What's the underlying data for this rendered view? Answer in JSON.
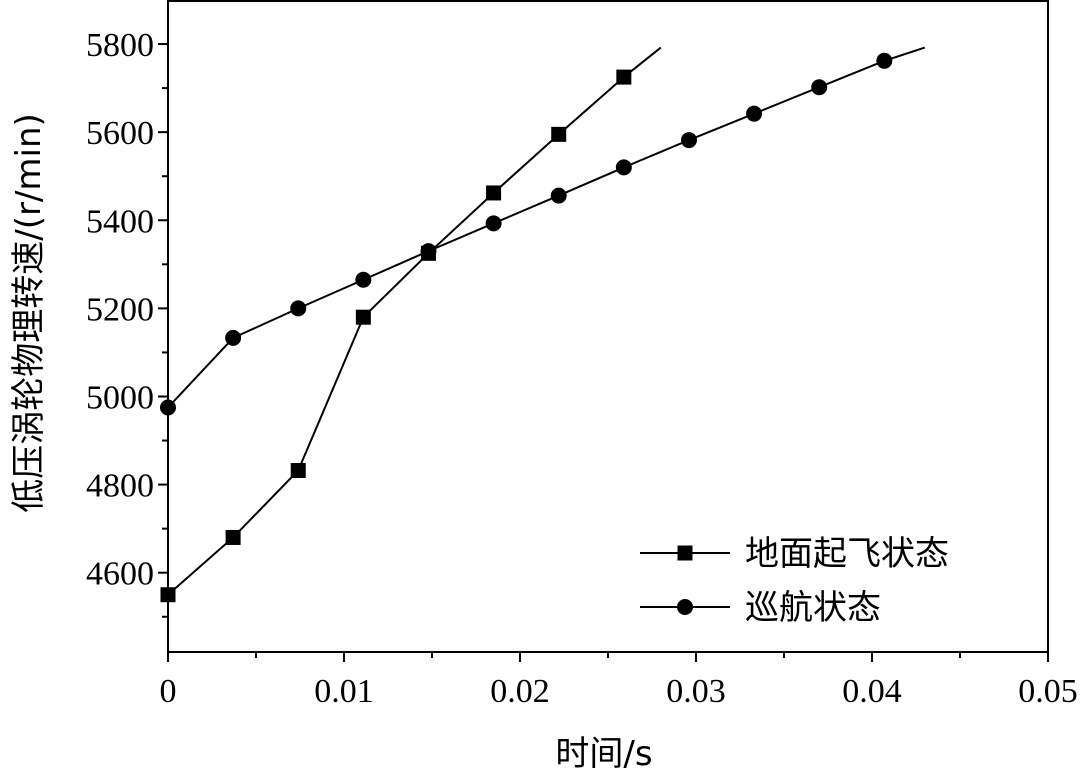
{
  "chart_data": {
    "type": "line",
    "title": "",
    "xlabel": "时间/s",
    "ylabel": "低压涡轮物理转速/(r/min)",
    "xlim": [
      0,
      0.05
    ],
    "ylim": [
      4420,
      5900
    ],
    "x_ticks": [
      0,
      0.01,
      0.02,
      0.03,
      0.04,
      0.05
    ],
    "x_tick_labels": [
      "0",
      "0.01",
      "0.02",
      "0.03",
      "0.04",
      "0.05"
    ],
    "y_ticks": [
      4600,
      4800,
      5000,
      5200,
      5400,
      5600,
      5800
    ],
    "y_tick_labels": [
      "4600",
      "4800",
      "5000",
      "5200",
      "5400",
      "5600",
      "5800"
    ],
    "grid": false,
    "legend_position": "bottom-right",
    "series": [
      {
        "name": "地面起飞状态",
        "marker": "square",
        "color": "#000000",
        "line_end": [
          0.028,
          5792
        ],
        "x": [
          0,
          0.0037,
          0.0074,
          0.0111,
          0.0148,
          0.0185,
          0.0222,
          0.0259
        ],
        "values": [
          4550,
          4680,
          4832,
          5180,
          5325,
          5462,
          5595,
          5725
        ]
      },
      {
        "name": "巡航状态",
        "marker": "circle",
        "color": "#000000",
        "line_end": [
          0.043,
          5792
        ],
        "x": [
          0,
          0.0037,
          0.0074,
          0.0111,
          0.0148,
          0.0185,
          0.0222,
          0.0259,
          0.0296,
          0.0333,
          0.037,
          0.0407
        ],
        "values": [
          4975,
          5133,
          5200,
          5265,
          5330,
          5393,
          5456,
          5520,
          5582,
          5642,
          5702,
          5762
        ]
      }
    ]
  }
}
